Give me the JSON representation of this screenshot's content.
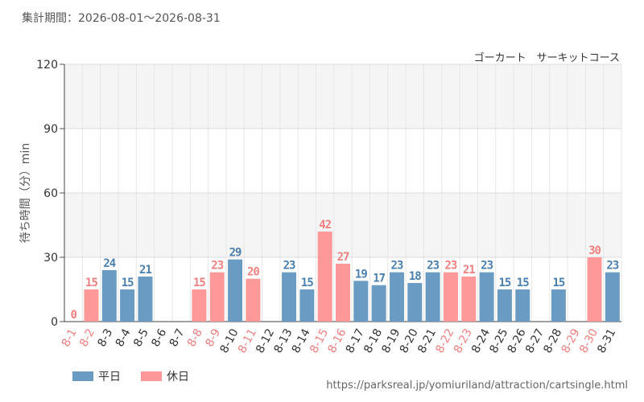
{
  "header": {
    "period": "集計期間：2026-08-01～2026-08-31",
    "subtitle": "ゴーカート　サーキットコース"
  },
  "legend": {
    "weekday_label": "平日",
    "holiday_label": "休日"
  },
  "source": "https://parksreal.jp/yomiuriland/attraction/cartsingle.html",
  "colors": {
    "weekday": "#6a9bc3",
    "holiday": "#ff9999",
    "weekday_text": "#4a7fae",
    "holiday_text": "#f07f7f",
    "band": "#f5f5f5",
    "grid": "#e6e6e6"
  },
  "chart_data": {
    "type": "bar",
    "title": "",
    "xlabel": "",
    "ylabel": "待ち時間（分）min",
    "ylim": [
      0,
      120
    ],
    "yticks": [
      0,
      30,
      60,
      90,
      120
    ],
    "grid": true,
    "legend_position": "bottom-left",
    "categories": [
      "8-1",
      "8-2",
      "8-3",
      "8-4",
      "8-5",
      "8-6",
      "8-7",
      "8-8",
      "8-9",
      "8-10",
      "8-11",
      "8-12",
      "8-13",
      "8-14",
      "8-15",
      "8-16",
      "8-17",
      "8-18",
      "8-19",
      "8-20",
      "8-21",
      "8-22",
      "8-23",
      "8-24",
      "8-25",
      "8-26",
      "8-27",
      "8-28",
      "8-29",
      "8-30",
      "8-31"
    ],
    "values": [
      0,
      15,
      24,
      15,
      21,
      null,
      null,
      15,
      23,
      29,
      20,
      null,
      23,
      15,
      42,
      27,
      19,
      17,
      23,
      18,
      23,
      23,
      21,
      23,
      15,
      15,
      null,
      15,
      null,
      30,
      23
    ],
    "day_type": [
      "holiday",
      "holiday",
      "weekday",
      "weekday",
      "weekday",
      "weekday",
      "weekday",
      "holiday",
      "holiday",
      "weekday",
      "holiday",
      "weekday",
      "weekday",
      "weekday",
      "holiday",
      "holiday",
      "weekday",
      "weekday",
      "weekday",
      "weekday",
      "weekday",
      "holiday",
      "holiday",
      "weekday",
      "weekday",
      "weekday",
      "weekday",
      "weekday",
      "holiday",
      "holiday",
      "weekday"
    ],
    "series": [
      {
        "name": "平日"
      },
      {
        "name": "休日"
      }
    ]
  }
}
